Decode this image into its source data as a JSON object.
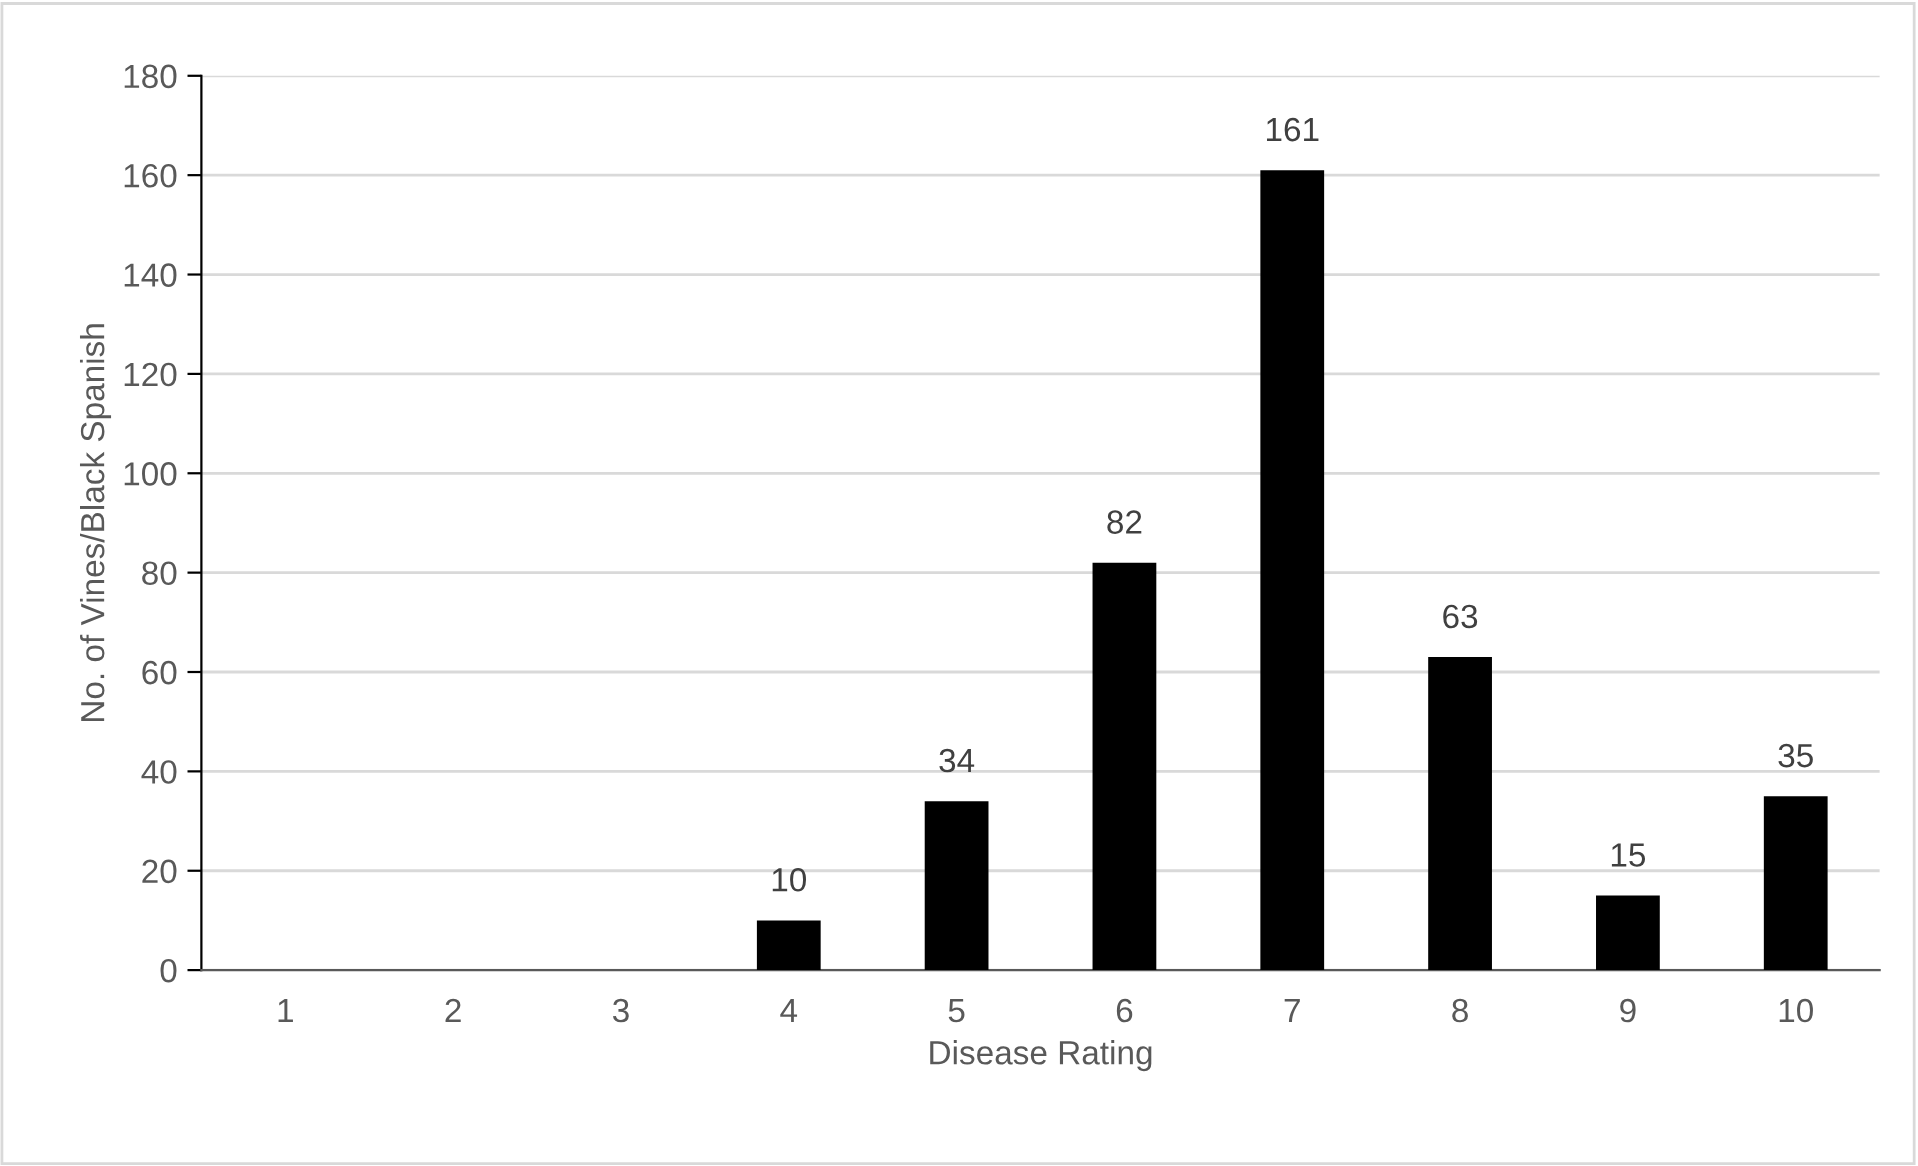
{
  "chart_data": {
    "type": "bar",
    "xlabel": "Disease Rating",
    "ylabel": "No. of Vines/Black Spanish",
    "categories": [
      "1",
      "2",
      "3",
      "4",
      "5",
      "6",
      "7",
      "8",
      "9",
      "10"
    ],
    "values": [
      0,
      0,
      0,
      10,
      34,
      82,
      161,
      63,
      15,
      35
    ],
    "value_labels": [
      null,
      null,
      null,
      "10",
      "34",
      "82",
      "161",
      "63",
      "15",
      "35"
    ],
    "color": "#000000",
    "ylim": [
      0,
      180
    ],
    "yticks": [
      0,
      20,
      40,
      60,
      80,
      100,
      120,
      140,
      160,
      180
    ],
    "grid": "y"
  }
}
